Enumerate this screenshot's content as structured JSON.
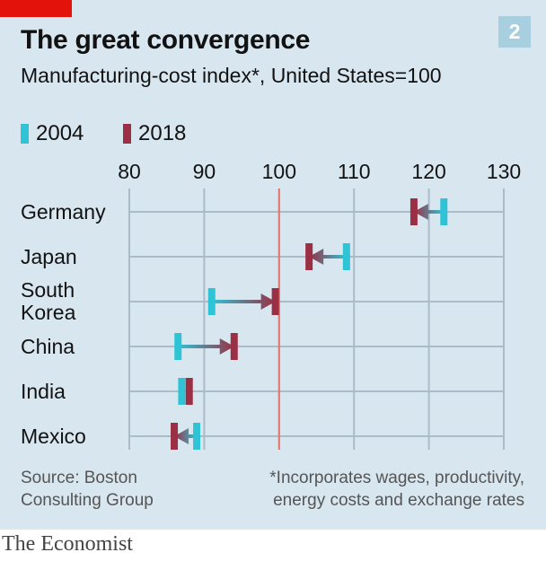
{
  "header": {
    "title": "The great convergence",
    "subtitle": "Manufacturing-cost index*, United States=100",
    "badge": "2"
  },
  "footer": {
    "source_line1": "Source: Boston",
    "source_line2": "Consulting Group",
    "note_line1": "*Incorporates wages, productivity,",
    "note_line2": "energy costs and exchange rates",
    "brand": "The Economist"
  },
  "colors": {
    "series_2004": "#2ec4d6",
    "series_2018": "#9b2f44",
    "reference_line": "#e8756a",
    "background": "#d7e6ef",
    "brand_red": "#e3120b"
  },
  "chart_data": {
    "type": "dumbbell-arrow",
    "title": "The great convergence",
    "subtitle": "Manufacturing-cost index*, United States=100",
    "categories": [
      "Germany",
      "Japan",
      "South Korea",
      "China",
      "India",
      "Mexico"
    ],
    "category_lines": [
      [
        "Germany"
      ],
      [
        "Japan"
      ],
      [
        "South",
        "Korea"
      ],
      [
        "China"
      ],
      [
        "India"
      ],
      [
        "Mexico"
      ]
    ],
    "series": [
      {
        "name": "2004",
        "values": [
          122,
          109,
          91,
          86.5,
          87,
          89
        ]
      },
      {
        "name": "2018",
        "values": [
          118,
          104,
          99.5,
          94,
          88,
          86
        ]
      }
    ],
    "xlim": [
      80,
      130
    ],
    "xticks": [
      80,
      90,
      100,
      110,
      120,
      130
    ],
    "reference_value": 100,
    "grid": true,
    "legend_position": "top-left"
  }
}
